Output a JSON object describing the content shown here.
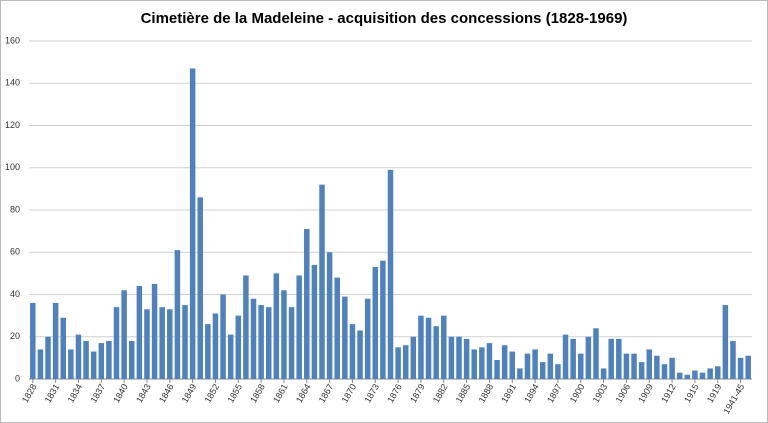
{
  "chart_data": {
    "type": "bar",
    "title": "Cimetière de la Madeleine - acquisition des concessions (1828-1969)",
    "categories": [
      "1828",
      null,
      null,
      "1831",
      null,
      null,
      "1834",
      null,
      null,
      "1837",
      null,
      null,
      "1840",
      null,
      null,
      "1843",
      null,
      null,
      "1846",
      null,
      null,
      "1849",
      null,
      null,
      "1852",
      null,
      null,
      "1855",
      null,
      null,
      "1858",
      null,
      null,
      "1861",
      null,
      null,
      "1864",
      null,
      null,
      "1867",
      null,
      null,
      "1870",
      null,
      null,
      "1873",
      null,
      null,
      "1876",
      null,
      null,
      "1879",
      null,
      null,
      "1882",
      null,
      null,
      "1885",
      null,
      null,
      "1888",
      null,
      null,
      "1891",
      null,
      null,
      "1894",
      null,
      null,
      "1897",
      null,
      null,
      "1900",
      null,
      null,
      "1903",
      null,
      null,
      "1906",
      null,
      null,
      "1909",
      null,
      null,
      "1912",
      null,
      null,
      "1915",
      null,
      null,
      "1919",
      null,
      null,
      "1941-45",
      null
    ],
    "values": [
      36,
      14,
      20,
      36,
      29,
      14,
      21,
      18,
      13,
      17,
      18,
      34,
      42,
      18,
      44,
      33,
      45,
      34,
      33,
      61,
      35,
      147,
      86,
      26,
      31,
      40,
      21,
      30,
      49,
      38,
      35,
      34,
      50,
      42,
      34,
      49,
      71,
      54,
      92,
      60,
      48,
      39,
      26,
      23,
      38,
      53,
      56,
      99,
      15,
      16,
      20,
      30,
      29,
      25,
      30,
      20,
      20,
      19,
      14,
      15,
      17,
      9,
      16,
      13,
      5,
      12,
      14,
      8,
      12,
      7,
      21,
      19,
      12,
      20,
      24,
      5,
      19,
      19,
      12,
      12,
      8,
      14,
      11,
      7,
      10,
      3,
      2,
      4,
      3,
      5,
      6,
      35,
      18,
      10,
      11
    ],
    "color": "#4f81bd",
    "ylim": [
      0,
      160
    ],
    "yticks": [
      0,
      20,
      40,
      60,
      80,
      100,
      120,
      140,
      160
    ],
    "grid": true
  }
}
